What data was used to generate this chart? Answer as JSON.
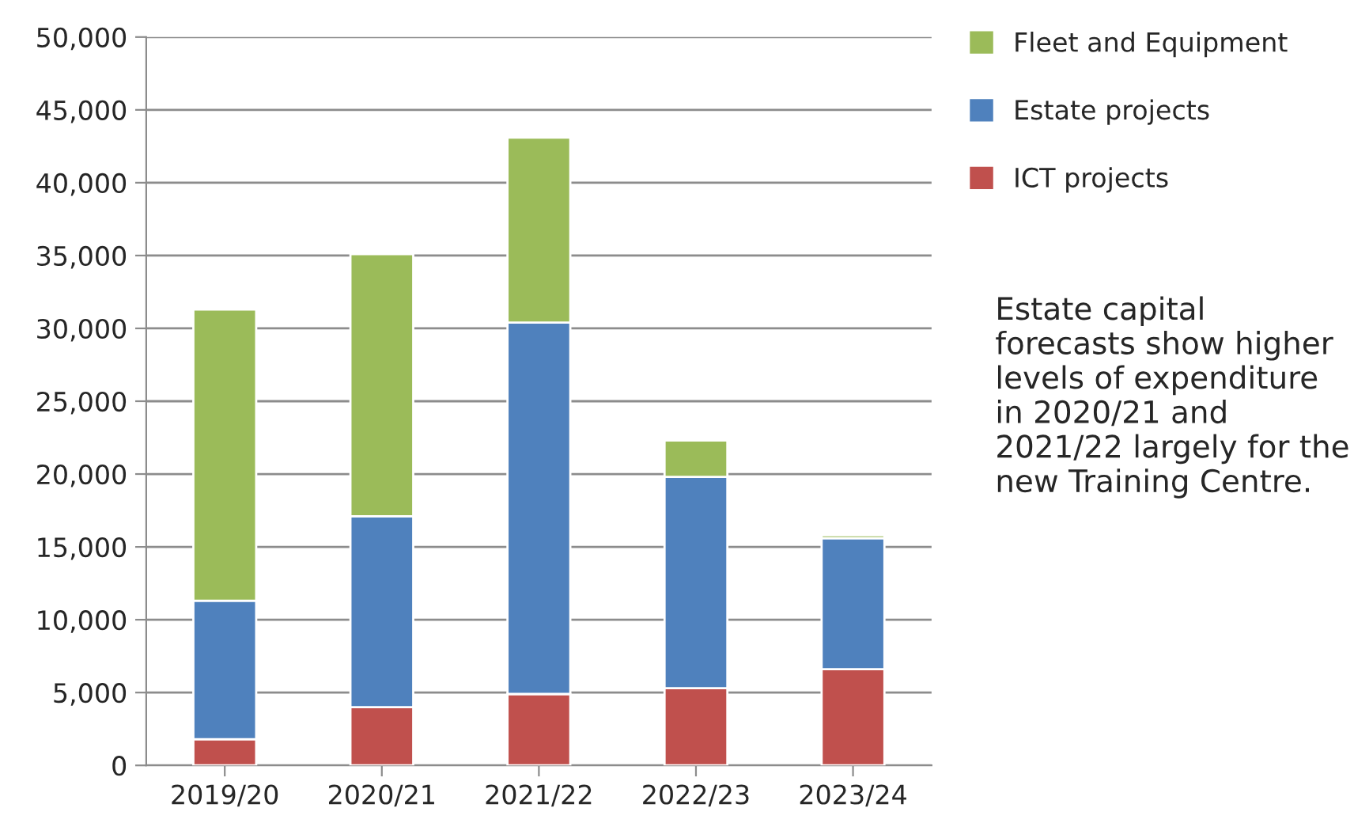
{
  "chart_data": {
    "type": "bar",
    "stacked": true,
    "categories": [
      "2019/20",
      "2020/21",
      "2021/22",
      "2022/23",
      "2023/24"
    ],
    "series": [
      {
        "name": "ICT projects",
        "color": "#c0504d",
        "values": [
          1800.0,
          4000.0,
          4900.0,
          5300.0,
          6600.0
        ]
      },
      {
        "name": "Estate projects",
        "color": "#4f81bd",
        "values": [
          9500.0,
          13100.0,
          25500.0,
          14500.0,
          9000.0
        ]
      },
      {
        "name": "Fleet and Equipment",
        "color": "#9bbb59",
        "values": [
          20000.0,
          18000.0,
          12700.0,
          2500.0,
          200.0
        ]
      }
    ],
    "ylim": [
      0,
      50000
    ],
    "yticks": [
      {
        "value": 0,
        "label": "0"
      },
      {
        "value": 5000,
        "label": "5,000"
      },
      {
        "value": 10000,
        "label": "10,000"
      },
      {
        "value": 15000,
        "label": "15,000"
      },
      {
        "value": 20000,
        "label": "20,000"
      },
      {
        "value": 25000,
        "label": "25,000"
      },
      {
        "value": 30000,
        "label": "30,000"
      },
      {
        "value": 35000,
        "label": "35,000"
      },
      {
        "value": 40000,
        "label": "40,000"
      },
      {
        "value": 45000,
        "label": "45,000"
      },
      {
        "value": 50000,
        "label": "50,000"
      }
    ],
    "grid": "y",
    "legend": "top right",
    "annotations": [
      "Estate capital forecasts show higher levels of expenditure in 2020/21 and 2021/22 largely for the new Training Centre."
    ]
  }
}
